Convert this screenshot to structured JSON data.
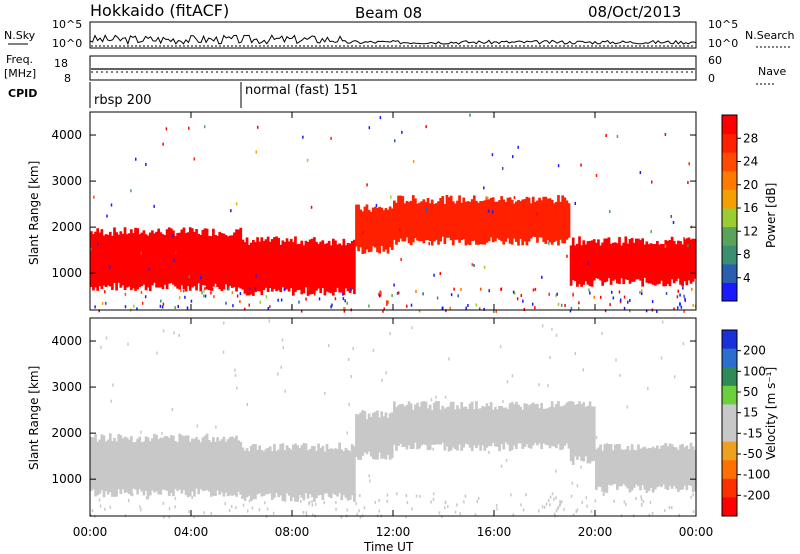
{
  "header": {
    "station": "Hokkaido (fitACF)",
    "beam": "Beam 08",
    "date": "08/Oct/2013"
  },
  "noise_panel": {
    "left_label": "N.Sky",
    "right_label": "N.Search",
    "left_ticks": [
      "10^5",
      "10^0"
    ],
    "right_ticks": [
      "10^5",
      "10^0"
    ]
  },
  "freq_panel": {
    "left_label": "Freq.",
    "left_unit": "[MHz]",
    "right_label": "Nave",
    "left_ticks": [
      "18",
      "8"
    ],
    "right_ticks": [
      "60",
      "0"
    ]
  },
  "cpid": {
    "label": "CPID",
    "modes": [
      {
        "name": "rbsp 200",
        "start_hour": 0
      },
      {
        "name": "normal (fast) 151",
        "start_hour": 6
      }
    ]
  },
  "x_axis": {
    "label": "Time UT",
    "ticks": [
      "00:00",
      "04:00",
      "08:00",
      "12:00",
      "16:00",
      "20:00",
      "00:00"
    ]
  },
  "colors": {
    "power_scale": [
      "#1a1aff",
      "#2a5fb0",
      "#3a8f6e",
      "#5aa35a",
      "#9acd32",
      "#f5a000",
      "#ff7a00",
      "#ff4a00",
      "#ff2000",
      "#ff0000"
    ],
    "velocity_scale": [
      "#1a30d8",
      "#2a6fd0",
      "#2e8b57",
      "#6ccf3c",
      "#c8c8c8",
      "#c8c8c8",
      "#f0a020",
      "#ff7000",
      "#ff3000",
      "#ff0000"
    ]
  },
  "chart_data": [
    {
      "type": "heatmap",
      "name_hint": "power",
      "ylabel": "Slant Range [km]",
      "y_ticks": [
        1000,
        2000,
        3000,
        4000
      ],
      "ylim": [
        200,
        4500
      ],
      "xlim_hours": [
        0,
        24
      ],
      "colorbar": {
        "label": "Power [dB]",
        "ticks": [
          "4",
          "8",
          "12",
          "16",
          "20",
          "24",
          "28"
        ],
        "range": [
          0,
          30
        ]
      },
      "bands": [
        {
          "x": [
            0,
            6
          ],
          "range_km": [
            700,
            1900
          ],
          "value": 28
        },
        {
          "x": [
            6,
            10.5
          ],
          "range_km": [
            600,
            1700
          ],
          "value": 28
        },
        {
          "x": [
            10.5,
            12
          ],
          "range_km": [
            1500,
            2400
          ],
          "value": 24
        },
        {
          "x": [
            12,
            19
          ],
          "range_km": [
            1700,
            2600
          ],
          "value": 24
        },
        {
          "x": [
            19,
            24
          ],
          "range_km": [
            800,
            1700
          ],
          "value": 28
        }
      ]
    },
    {
      "type": "heatmap",
      "name_hint": "velocity",
      "ylabel": "Slant Range [km]",
      "y_ticks": [
        1000,
        2000,
        3000,
        4000
      ],
      "ylim": [
        200,
        4500
      ],
      "xlim_hours": [
        0,
        24
      ],
      "colorbar": {
        "label": "Velocity [m s⁻¹]",
        "ticks": [
          "200",
          "100",
          "50",
          "15",
          "-15",
          "-50",
          "-100",
          "-200"
        ],
        "range": [
          -250,
          250
        ]
      },
      "bands": [
        {
          "x": [
            0,
            6
          ],
          "range_km": [
            700,
            1900
          ],
          "value": 0
        },
        {
          "x": [
            6,
            10.5
          ],
          "range_km": [
            600,
            1700
          ],
          "value": 0
        },
        {
          "x": [
            10.5,
            12
          ],
          "range_km": [
            1500,
            2400
          ],
          "value": 0
        },
        {
          "x": [
            12,
            19
          ],
          "range_km": [
            1700,
            2600
          ],
          "value": 0
        },
        {
          "x": [
            19,
            20
          ],
          "range_km": [
            1400,
            2600
          ],
          "value": 30
        },
        {
          "x": [
            20,
            24
          ],
          "range_km": [
            800,
            1700
          ],
          "value": 0
        }
      ]
    }
  ]
}
